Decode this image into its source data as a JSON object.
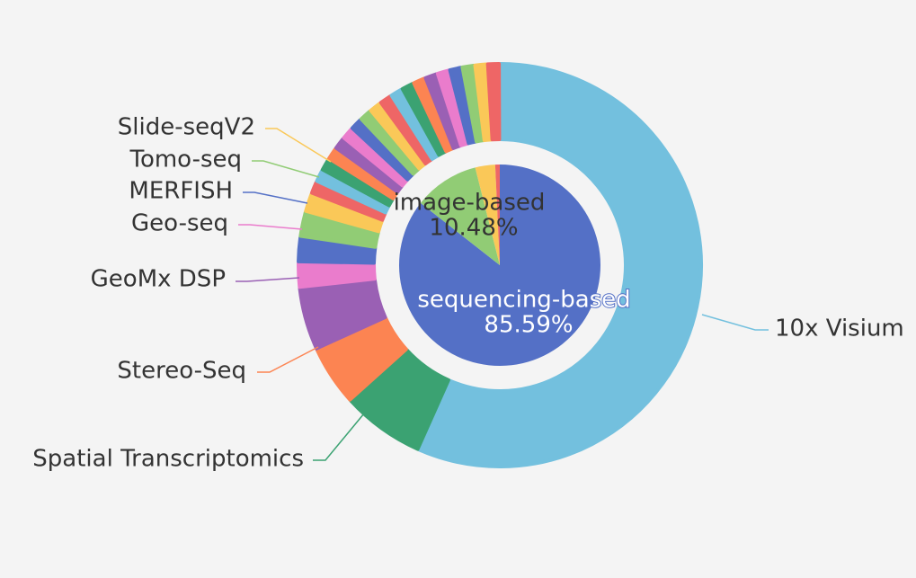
{
  "chart_data": [
    {
      "type": "pie",
      "variant": "inner-pie",
      "slices": [
        {
          "label": "sequencing-based",
          "percent_label": "85.59%",
          "value": 85.59,
          "color": "#5470c6",
          "label_color": "#ffffff"
        },
        {
          "label": "image-based",
          "percent_label": "10.48%",
          "value": 10.48,
          "color": "#91cc75",
          "label_color": "#333333"
        },
        {
          "label": "",
          "percent_label": "",
          "value": 3.2,
          "color": "#fac858"
        },
        {
          "label": "",
          "percent_label": "",
          "value": 0.73,
          "color": "#ee6666"
        }
      ]
    },
    {
      "type": "pie",
      "variant": "donut",
      "legend_placement": "outside-labels",
      "slices": [
        {
          "label": "10x Visium",
          "value": 56.0,
          "color": "#73c0de"
        },
        {
          "label": "Spatial Transcriptomics",
          "value": 6.6,
          "color": "#3ba272"
        },
        {
          "label": "Stereo-Seq",
          "value": 4.8,
          "color": "#fc8452"
        },
        {
          "label": "GeoMx DSP",
          "value": 5.0,
          "color": "#9a60b4"
        },
        {
          "label": "Geo-seq",
          "value": 2.0,
          "color": "#ea7ccc"
        },
        {
          "label": "MERFISH",
          "value": 2.0,
          "color": "#5470c6"
        },
        {
          "label": "Tomo-seq",
          "value": 2.0,
          "color": "#91cc75"
        },
        {
          "label": "Slide-seqV2",
          "value": 1.5,
          "color": "#fac858"
        },
        {
          "label": "",
          "value": 1.0,
          "color": "#ee6666"
        },
        {
          "label": "",
          "value": 1.0,
          "color": "#73c0de"
        },
        {
          "label": "",
          "value": 1.0,
          "color": "#3ba272"
        },
        {
          "label": "",
          "value": 1.0,
          "color": "#fc8452"
        },
        {
          "label": "",
          "value": 1.0,
          "color": "#9a60b4"
        },
        {
          "label": "",
          "value": 1.0,
          "color": "#ea7ccc"
        },
        {
          "label": "",
          "value": 1.0,
          "color": "#5470c6"
        },
        {
          "label": "",
          "value": 1.0,
          "color": "#91cc75"
        },
        {
          "label": "",
          "value": 1.0,
          "color": "#fac858"
        },
        {
          "label": "",
          "value": 1.0,
          "color": "#ee6666"
        },
        {
          "label": "",
          "value": 1.0,
          "color": "#73c0de"
        },
        {
          "label": "",
          "value": 1.0,
          "color": "#3ba272"
        },
        {
          "label": "",
          "value": 1.0,
          "color": "#fc8452"
        },
        {
          "label": "",
          "value": 1.0,
          "color": "#9a60b4"
        },
        {
          "label": "",
          "value": 1.0,
          "color": "#ea7ccc"
        },
        {
          "label": "",
          "value": 1.0,
          "color": "#5470c6"
        },
        {
          "label": "",
          "value": 1.0,
          "color": "#91cc75"
        },
        {
          "label": "",
          "value": 1.0,
          "color": "#fac858"
        },
        {
          "label": "",
          "value": 1.0,
          "color": "#ee6666"
        }
      ]
    }
  ]
}
